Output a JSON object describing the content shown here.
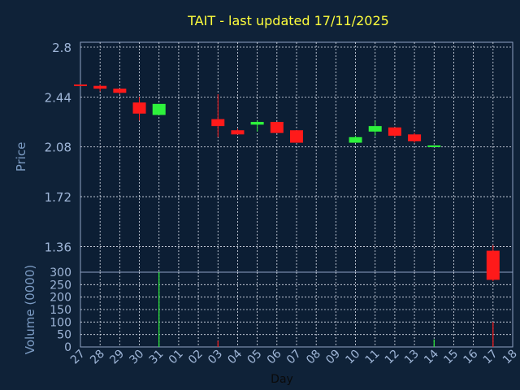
{
  "chart_data": [
    {
      "type": "candlestick",
      "title": "TAIT - last updated 17/11/2025",
      "ylabel": "Price",
      "ylim": [
        1.175,
        2.835
      ],
      "y_ticks": [
        2.8,
        2.44,
        2.08,
        1.72,
        1.36
      ],
      "y_tick_labels": [
        "2.8",
        "2.44",
        "2.08",
        "1.72",
        "1.36"
      ],
      "x_tick_labels": [
        "27",
        "28",
        "29",
        "30",
        "31",
        "01",
        "02",
        "03",
        "04",
        "05",
        "06",
        "07",
        "08",
        "09",
        "10",
        "11",
        "12",
        "13",
        "14",
        "15",
        "16",
        "17",
        "18"
      ],
      "grid": true,
      "series": [
        {
          "day": "27",
          "open": 2.53,
          "high": 2.53,
          "low": 2.52,
          "close": 2.52
        },
        {
          "day": "28",
          "open": 2.52,
          "high": 2.53,
          "low": 2.48,
          "close": 2.5
        },
        {
          "day": "29",
          "open": 2.5,
          "high": 2.5,
          "low": 2.46,
          "close": 2.47
        },
        {
          "day": "30",
          "open": 2.4,
          "high": 2.44,
          "low": 2.27,
          "close": 2.32
        },
        {
          "day": "31",
          "open": 2.31,
          "high": 2.39,
          "low": 2.31,
          "close": 2.39
        },
        {
          "day": "03",
          "open": 2.28,
          "high": 2.46,
          "low": 2.15,
          "close": 2.23
        },
        {
          "day": "04",
          "open": 2.2,
          "high": 2.21,
          "low": 2.17,
          "close": 2.17
        },
        {
          "day": "05",
          "open": 2.24,
          "high": 2.27,
          "low": 2.19,
          "close": 2.26
        },
        {
          "day": "06",
          "open": 2.26,
          "high": 2.26,
          "low": 2.18,
          "close": 2.18
        },
        {
          "day": "07",
          "open": 2.2,
          "high": 2.2,
          "low": 2.11,
          "close": 2.11
        },
        {
          "day": "10",
          "open": 2.11,
          "high": 2.16,
          "low": 2.11,
          "close": 2.15
        },
        {
          "day": "11",
          "open": 2.19,
          "high": 2.27,
          "low": 2.16,
          "close": 2.23
        },
        {
          "day": "12",
          "open": 2.22,
          "high": 2.22,
          "low": 2.15,
          "close": 2.16
        },
        {
          "day": "13",
          "open": 2.17,
          "high": 2.18,
          "low": 2.11,
          "close": 2.12
        },
        {
          "day": "14",
          "open": 2.09,
          "high": 2.09,
          "low": 2.08,
          "close": 2.09
        },
        {
          "day": "17",
          "open": 1.33,
          "high": 1.37,
          "low": 1.11,
          "close": 1.12
        }
      ]
    },
    {
      "type": "bar",
      "ylabel": "Volume (0000)",
      "xlabel": "Day",
      "ylim": [
        0,
        300
      ],
      "y_ticks": [
        0,
        50,
        100,
        150,
        200,
        250,
        300
      ],
      "y_tick_labels": [
        "0",
        "50",
        "100",
        "150",
        "200",
        "250",
        "300"
      ],
      "grid": true,
      "series": [
        {
          "day": "31",
          "value": 300,
          "direction": "up"
        },
        {
          "day": "03",
          "value": 25,
          "direction": "down"
        },
        {
          "day": "14",
          "value": 30,
          "direction": "up"
        },
        {
          "day": "17",
          "value": 100,
          "direction": "down"
        }
      ]
    }
  ],
  "colors": {
    "background": "#0f2238",
    "plot_background": "#0c1e34",
    "axis": "#8fa3c4",
    "grid": "#dde3ee",
    "title": "#ffff3c",
    "label": "#7c9cc4",
    "tick_text": "#9fb6d8",
    "up": "#2ef23c",
    "down": "#ff1a1a",
    "xlabel": "#0a0a0a"
  }
}
